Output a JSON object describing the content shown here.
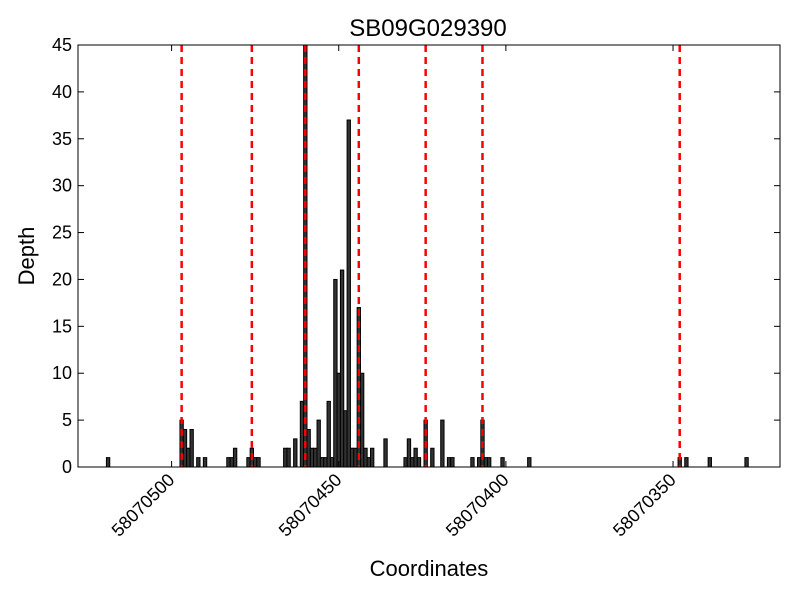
{
  "chart_data": {
    "type": "bar",
    "title": "SB09G029390",
    "xlabel": "Coordinates",
    "ylabel": "Depth",
    "x": [
      58070519,
      58070497,
      58070496,
      58070495,
      58070494,
      58070492,
      58070490,
      58070483,
      58070482,
      58070481,
      58070477,
      58070476,
      58070475,
      58070474,
      58070466,
      58070465,
      58070463,
      58070461,
      58070460,
      58070459,
      58070458,
      58070457,
      58070456,
      58070455,
      58070454,
      58070453,
      58070452,
      58070451,
      58070450,
      58070449,
      58070448,
      58070447,
      58070446,
      58070445,
      58070444,
      58070443,
      58070442,
      58070441,
      58070440,
      58070436,
      58070430,
      58070429,
      58070428,
      58070427,
      58070426,
      58070424,
      58070422,
      58070419,
      58070417,
      58070416,
      58070410,
      58070408,
      58070407,
      58070406,
      58070405,
      58070401,
      58070393,
      58070348,
      58070346,
      58070339,
      58070328
    ],
    "values": [
      1,
      5,
      4,
      2,
      4,
      1,
      1,
      1,
      1,
      2,
      1,
      2,
      1,
      1,
      2,
      2,
      3,
      7,
      45,
      4,
      2,
      2,
      5,
      1,
      1,
      7,
      1,
      20,
      10,
      21,
      6,
      37,
      2,
      2,
      17,
      10,
      2,
      1,
      2,
      3,
      1,
      3,
      1,
      2,
      1,
      5,
      2,
      5,
      1,
      1,
      1,
      1,
      5,
      1,
      1,
      1,
      1,
      1,
      1,
      1,
      1
    ],
    "color": "#333333",
    "edgecolor": "#000000",
    "vlines": [
      58070497,
      58070476,
      58070460,
      58070444,
      58070424,
      58070407,
      58070348
    ],
    "vline_color": "#ff0000",
    "xlim": [
      58070528,
      58070318
    ],
    "xticks": [
      58070500,
      58070450,
      58070400,
      58070350
    ],
    "ylim": [
      0,
      45
    ],
    "yticks": [
      0,
      5,
      10,
      15,
      20,
      25,
      30,
      35,
      40,
      45
    ]
  }
}
